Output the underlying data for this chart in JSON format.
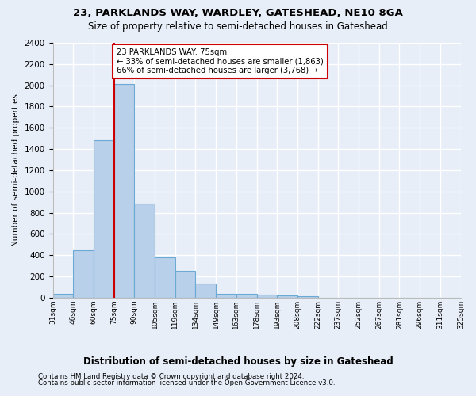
{
  "title1": "23, PARKLANDS WAY, WARDLEY, GATESHEAD, NE10 8GA",
  "title2": "Size of property relative to semi-detached houses in Gateshead",
  "xlabel": "Distribution of semi-detached houses by size in Gateshead",
  "ylabel": "Number of semi-detached properties",
  "footer1": "Contains HM Land Registry data © Crown copyright and database right 2024.",
  "footer2": "Contains public sector information licensed under the Open Government Licence v3.0.",
  "bin_labels": [
    "31sqm",
    "46sqm",
    "60sqm",
    "75sqm",
    "90sqm",
    "105sqm",
    "119sqm",
    "134sqm",
    "149sqm",
    "163sqm",
    "178sqm",
    "193sqm",
    "208sqm",
    "222sqm",
    "237sqm",
    "252sqm",
    "267sqm",
    "281sqm",
    "296sqm",
    "311sqm",
    "325sqm"
  ],
  "values": [
    35,
    450,
    1480,
    2010,
    885,
    380,
    255,
    135,
    35,
    35,
    28,
    20,
    12,
    0,
    0,
    0,
    0,
    0,
    0,
    0
  ],
  "bar_color": "#b8d0ea",
  "bar_edge_color": "#6aaad4",
  "vline_color": "#cc0000",
  "vline_bin_index": 3,
  "annotation_text": "23 PARKLANDS WAY: 75sqm\n← 33% of semi-detached houses are smaller (1,863)\n66% of semi-detached houses are larger (3,768) →",
  "ylim": [
    0,
    2400
  ],
  "yticks": [
    0,
    200,
    400,
    600,
    800,
    1000,
    1200,
    1400,
    1600,
    1800,
    2000,
    2200,
    2400
  ],
  "bg_color": "#e8eef8",
  "grid_color": "#ffffff",
  "annotation_box_facecolor": "#ffffff",
  "annotation_box_edgecolor": "#cc0000"
}
